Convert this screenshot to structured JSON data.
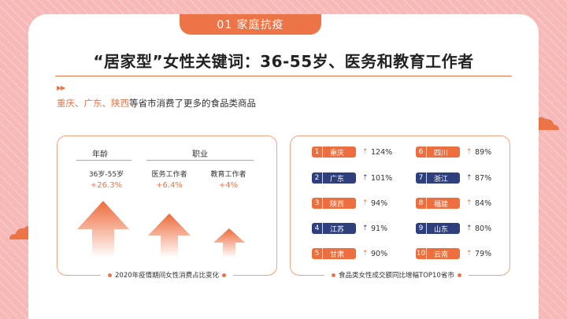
{
  "header": {
    "tab": "01 家庭抗疫"
  },
  "title": "“居家型”女性关键词：36-55岁、医务和教育工作者",
  "subtitle": {
    "highlight": "重庆、广东、陕西",
    "rest": "等省市消费了更多的食品类商品"
  },
  "left_panel": {
    "age_heading": "年龄",
    "job_heading": "职业",
    "items": [
      {
        "label": "36岁-55岁",
        "value": "+26.3%"
      },
      {
        "label": "医务工作者",
        "value": "+6.4%"
      },
      {
        "label": "教育工作者",
        "value": "+4%"
      }
    ],
    "caption": "2020年疫情期间女性消费占比变化"
  },
  "right_panel": {
    "ranks": [
      {
        "num": "1",
        "city": "重庆",
        "value": "124%"
      },
      {
        "num": "2",
        "city": "广东",
        "value": "101%"
      },
      {
        "num": "3",
        "city": "陕西",
        "value": "94%"
      },
      {
        "num": "4",
        "city": "江苏",
        "value": "91%"
      },
      {
        "num": "5",
        "city": "甘肃",
        "value": "90%"
      },
      {
        "num": "6",
        "city": "四川",
        "value": "89%"
      },
      {
        "num": "7",
        "city": "浙江",
        "value": "87%"
      },
      {
        "num": "8",
        "city": "福建",
        "value": "84%"
      },
      {
        "num": "9",
        "city": "山东",
        "value": "80%"
      },
      {
        "num": "10",
        "city": "云南",
        "value": "79%"
      }
    ],
    "caption": "食品类女性成交额同比增幅TOP10省市"
  },
  "colors": {
    "accent": "#ed7446",
    "navy": "#2f3f7e",
    "background": "#f7b8b8"
  }
}
